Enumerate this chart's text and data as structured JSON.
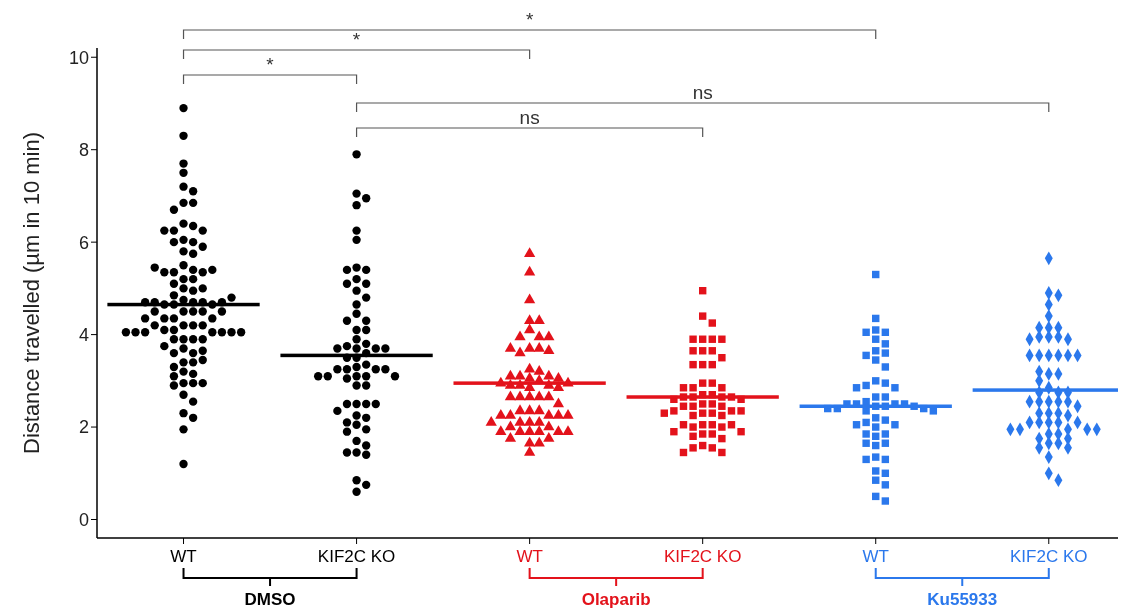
{
  "chart_data": {
    "type": "box",
    "ylabel": "Distance travelled (µm in 10 min)",
    "categories": [
      "WT",
      "KIF2C KO",
      "WT",
      "KIF2C KO",
      "WT",
      "KIF2C KO"
    ],
    "ylim": [
      -0.4,
      10.2
    ],
    "yticks": [
      0,
      2,
      4,
      6,
      8,
      10
    ],
    "grid": false,
    "legend": false,
    "series": [
      {
        "marker": "circle",
        "colors": [
          "#000000",
          "#000000",
          null,
          null,
          null,
          null
        ],
        "boxes": [
          {
            "low": 4.65,
            "q1": 4.65,
            "median": 4.65,
            "q3": 4.65,
            "high": 4.65,
            "outliers": [
              8.9,
              8.3,
              7.7,
              7.5,
              7.2,
              7.1,
              6.85,
              6.85,
              6.7,
              6.4,
              6.35,
              6.25,
              6.25,
              6.25,
              6.05,
              6.0,
              6.0,
              5.9,
              5.8,
              5.75,
              5.5,
              5.4,
              5.35,
              5.35,
              5.35,
              5.4,
              5.45,
              5.2,
              5.2,
              5.0,
              4.95,
              4.85,
              5.0,
              5.1,
              4.75,
              4.7,
              4.7,
              4.65,
              4.65,
              4.65,
              4.7,
              4.7,
              4.7,
              4.8,
              4.5,
              4.5,
              4.5,
              4.5,
              4.5,
              4.35,
              4.35,
              4.35,
              4.35,
              4.2,
              4.2,
              4.2,
              4.2,
              4.1,
              4.1,
              4.05,
              4.05,
              4.05,
              4.05,
              4.05,
              4.05,
              4.05,
              3.9,
              3.9,
              3.9,
              3.9,
              3.75,
              3.7,
              3.6,
              3.6,
              3.65,
              3.4,
              3.4,
              3.45,
              3.2,
              3.3,
              3.15,
              3.1,
              2.95,
              2.95,
              2.9,
              2.95,
              2.7,
              2.55,
              2.3,
              2.2,
              1.95,
              1.2
            ]
          },
          {
            "low": 3.55,
            "q1": 3.55,
            "median": 3.55,
            "q3": 3.55,
            "high": 3.55,
            "outliers": [
              7.9,
              7.05,
              6.95,
              6.8,
              6.25,
              6.05,
              5.45,
              5.4,
              5.4,
              5.2,
              5.1,
              5.1,
              4.95,
              4.8,
              4.65,
              4.45,
              4.3,
              4.3,
              4.1,
              4.1,
              3.9,
              3.8,
              3.75,
              3.7,
              3.7,
              3.6,
              3.7,
              3.7,
              3.5,
              3.5,
              3.35,
              3.3,
              3.25,
              3.25,
              3.25,
              3.25,
              3.1,
              3.1,
              3.1,
              3.1,
              3.1,
              3.05,
              2.9,
              2.9,
              2.5,
              2.5,
              2.5,
              2.5,
              2.35,
              2.25,
              2.2,
              2.1,
              2.05,
              1.95,
              1.9,
              1.7,
              1.6,
              1.45,
              1.45,
              1.4,
              0.85,
              0.75,
              0.6
            ]
          },
          null,
          null,
          null,
          null
        ]
      },
      {
        "marker": "triangle",
        "colors": [
          null,
          null,
          "#e3121b",
          null,
          null,
          null
        ],
        "boxes": [
          null,
          null,
          {
            "low": 2.95,
            "q1": 2.95,
            "median": 2.95,
            "q3": 2.95,
            "high": 2.95,
            "outliers": [
              5.75,
              5.35,
              4.75,
              4.3,
              4.3,
              4.1,
              3.95,
              3.95,
              3.95,
              3.7,
              3.7,
              3.6,
              3.65,
              3.7,
              3.25,
              3.2,
              3.1,
              3.1,
              3.1,
              3.05,
              3.05,
              3.0,
              2.95,
              2.95,
              2.9,
              2.9,
              2.9,
              2.85,
              2.85,
              2.65,
              2.65,
              2.65,
              2.65,
              2.65,
              2.5,
              2.35,
              2.35,
              2.35,
              2.25,
              2.25,
              2.25,
              2.25,
              2.25,
              2.1,
              2.1,
              2.1,
              2.1,
              2.0,
              2.0,
              1.9,
              1.9,
              1.9,
              1.9,
              1.9,
              1.9,
              1.75,
              1.75,
              1.65,
              1.65,
              1.45
            ]
          },
          null,
          null,
          null
        ]
      },
      {
        "marker": "square",
        "colors": [
          null,
          null,
          null,
          "#e3121b",
          "#2b78ec",
          null
        ],
        "boxes": [
          null,
          null,
          null,
          {
            "low": 2.65,
            "q1": 2.65,
            "median": 2.65,
            "q3": 2.65,
            "high": 2.65,
            "outliers": [
              4.95,
              4.4,
              4.25,
              3.9,
              3.9,
              3.9,
              3.9,
              3.65,
              3.65,
              3.65,
              3.5,
              3.35,
              3.35,
              3.35,
              2.95,
              2.95,
              2.85,
              2.85,
              2.85,
              2.7,
              2.7,
              2.65,
              2.65,
              2.65,
              2.65,
              2.6,
              2.6,
              2.5,
              2.5,
              2.45,
              2.45,
              2.45,
              2.35,
              2.35,
              2.35,
              2.3,
              2.3,
              2.3,
              2.25,
              2.25,
              2.05,
              2.05,
              2.0,
              2.0,
              2.05,
              2.05,
              1.9,
              1.9,
              1.85,
              1.85,
              1.8,
              1.75,
              1.6,
              1.55,
              1.55,
              1.45,
              1.45
            ]
          },
          {
            "low": 2.45,
            "q1": 2.45,
            "median": 2.45,
            "q3": 2.45,
            "high": 2.45,
            "outliers": [
              5.3,
              4.35,
              4.1,
              4.05,
              4.05,
              3.9,
              3.8,
              3.65,
              3.6,
              3.55,
              3.45,
              3.3,
              3.0,
              2.95,
              2.9,
              2.85,
              2.85,
              2.65,
              2.65,
              2.55,
              2.5,
              2.5,
              2.5,
              2.5,
              2.45,
              2.45,
              2.45,
              2.4,
              2.4,
              2.4,
              2.35,
              2.35,
              2.2,
              2.15,
              2.1,
              2.05,
              2.05,
              2.0,
              1.85,
              1.85,
              1.8,
              1.65,
              1.65,
              1.6,
              1.35,
              1.3,
              1.3,
              1.05,
              1.0,
              0.85,
              0.75,
              0.5,
              0.4
            ]
          },
          null
        ]
      },
      {
        "marker": "diamond",
        "colors": [
          null,
          null,
          null,
          null,
          null,
          "#2b78ec"
        ],
        "boxes": [
          null,
          null,
          null,
          null,
          null,
          {
            "low": 2.8,
            "q1": 2.8,
            "median": 2.8,
            "q3": 2.8,
            "high": 2.8,
            "outliers": [
              5.65,
              4.9,
              4.85,
              4.65,
              4.4,
              4.15,
              4.15,
              4.15,
              3.95,
              3.95,
              3.95,
              3.9,
              3.9,
              3.55,
              3.55,
              3.55,
              3.55,
              3.55,
              3.55,
              3.15,
              3.15,
              3.2,
              3.0,
              2.85,
              2.75,
              2.75,
              2.75,
              2.55,
              2.55,
              2.55,
              2.55,
              2.55,
              2.45,
              2.3,
              2.3,
              2.3,
              2.25,
              2.1,
              2.1,
              2.1,
              2.1,
              2.1,
              1.95,
              1.95,
              1.95,
              1.95,
              1.95,
              1.85,
              1.85,
              1.75,
              1.75,
              1.65,
              1.65,
              1.55,
              1.55,
              1.35,
              1.0,
              0.85
            ]
          }
        ]
      }
    ],
    "annotations": [
      "*",
      "*",
      "*",
      "ns",
      "ns",
      "DMSO",
      "Olaparib",
      "Ku55933"
    ]
  }
}
